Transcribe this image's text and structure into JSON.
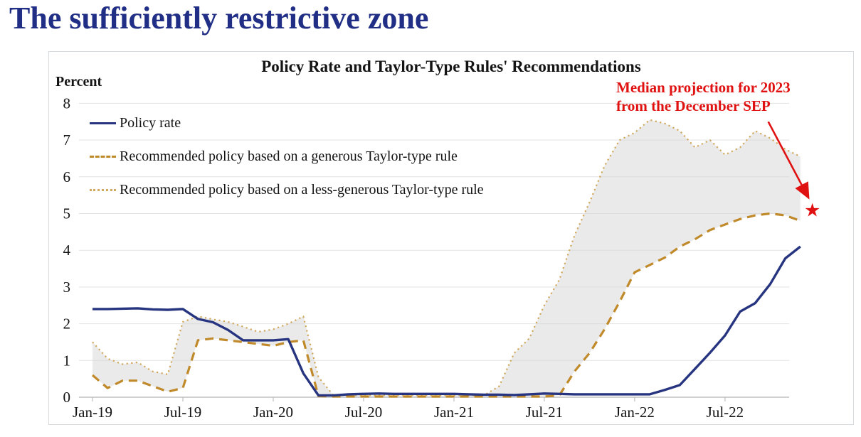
{
  "page": {
    "title": "The sufficiently restrictive zone",
    "title_color": "#202e85"
  },
  "chart_data": {
    "type": "line",
    "title": "Policy Rate and Taylor-Type Rules' Recommendations",
    "y_axis_label": "Percent",
    "ylim": [
      0,
      8
    ],
    "y_ticks": [
      0,
      1,
      2,
      3,
      4,
      5,
      6,
      7,
      8
    ],
    "x_tick_labels": [
      "Jan-19",
      "Jul-19",
      "Jan-20",
      "Jul-20",
      "Jan-21",
      "Jul-21",
      "Jan-22",
      "Jul-22"
    ],
    "x_frequency": "monthly",
    "x_range": [
      "Jan-2019",
      "Dec-2022"
    ],
    "grid": "horizontal-only",
    "legend_position": "inside-top-left",
    "series": [
      {
        "name": "Policy rate",
        "line_style": "solid",
        "color": "#273580",
        "values": [
          2.4,
          2.4,
          2.41,
          2.42,
          2.39,
          2.38,
          2.4,
          2.13,
          2.04,
          1.83,
          1.55,
          1.55,
          1.55,
          1.58,
          0.65,
          0.05,
          0.05,
          0.08,
          0.09,
          0.1,
          0.09,
          0.09,
          0.09,
          0.09,
          0.09,
          0.08,
          0.07,
          0.07,
          0.06,
          0.08,
          0.1,
          0.09,
          0.08,
          0.08,
          0.08,
          0.08,
          0.08,
          0.08,
          0.2,
          0.33,
          0.77,
          1.21,
          1.68,
          2.33,
          2.56,
          3.08,
          3.78,
          4.1
        ]
      },
      {
        "name": "Recommended policy based on a generous Taylor-type rule",
        "line_style": "dashed",
        "color": "#c08a2a",
        "values": [
          0.6,
          0.25,
          0.45,
          0.45,
          0.3,
          0.15,
          0.25,
          1.55,
          1.6,
          1.55,
          1.5,
          1.45,
          1.4,
          1.5,
          1.55,
          0.03,
          0.02,
          0.02,
          0.02,
          0.02,
          0.02,
          0.02,
          0.02,
          0.02,
          0.02,
          0.02,
          0.02,
          0.02,
          0.02,
          0.02,
          0.02,
          0.05,
          0.7,
          1.2,
          1.85,
          2.6,
          3.4,
          3.6,
          3.8,
          4.1,
          4.3,
          4.55,
          4.7,
          4.85,
          4.95,
          5.0,
          4.95,
          4.8
        ]
      },
      {
        "name": "Recommended policy based on a less-generous Taylor-type rule",
        "line_style": "dotted",
        "color": "#d0a95e",
        "values": [
          1.5,
          1.05,
          0.9,
          0.95,
          0.7,
          0.62,
          2.05,
          2.2,
          2.12,
          2.05,
          1.92,
          1.78,
          1.85,
          2.0,
          2.2,
          0.55,
          0.05,
          0.05,
          0.05,
          0.05,
          0.05,
          0.05,
          0.05,
          0.05,
          0.05,
          0.05,
          0.05,
          0.3,
          1.2,
          1.6,
          2.5,
          3.2,
          4.4,
          5.3,
          6.3,
          7.0,
          7.2,
          7.55,
          7.45,
          7.25,
          6.8,
          7.0,
          6.6,
          6.8,
          7.25,
          7.05,
          6.75,
          6.55
        ]
      }
    ],
    "shaded_band": {
      "between": [
        "Recommended policy based on a generous Taylor-type rule",
        "Recommended policy based on a less-generous Taylor-type rule"
      ],
      "fill": "#d9d9d9",
      "opacity": 0.55
    },
    "annotation": {
      "line1": "Median projection for 2023",
      "line2": "from the December SEP",
      "color": "#e01111",
      "marker": "red-star",
      "marker_value": 5.1
    }
  }
}
